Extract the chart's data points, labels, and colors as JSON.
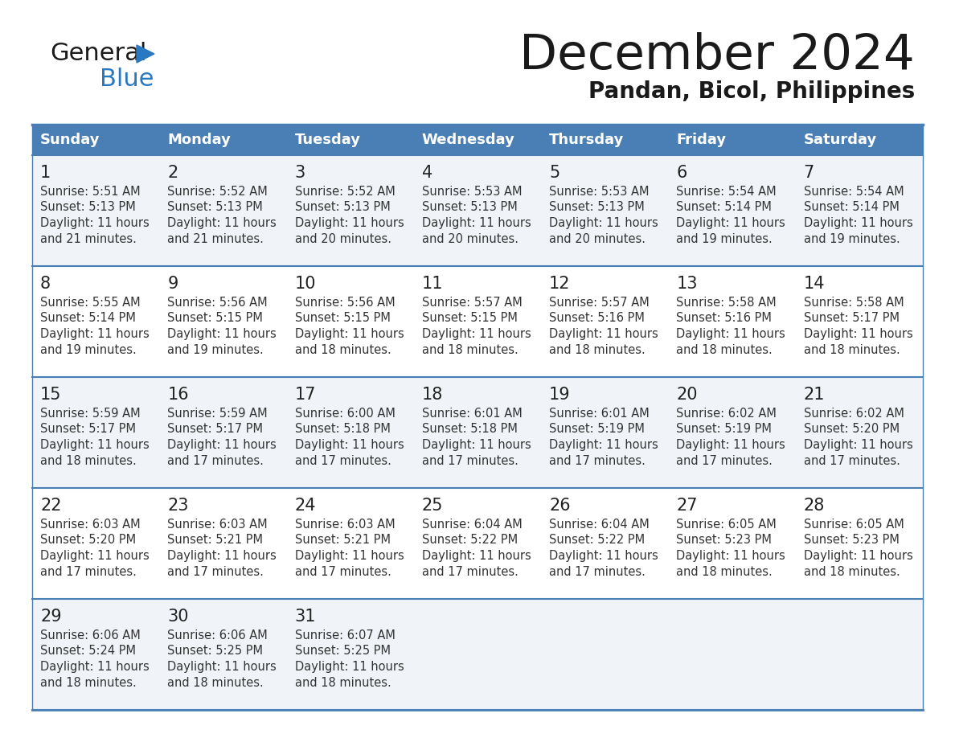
{
  "title": "December 2024",
  "subtitle": "Pandan, Bicol, Philippines",
  "header_color": "#4A7FB5",
  "header_text_color": "#FFFFFF",
  "cell_bg_odd": "#F0F4F8",
  "cell_bg_even": "#FFFFFF",
  "border_color": "#4A7FB5",
  "day_number_color": "#222222",
  "text_color": "#333333",
  "logo_general_color": "#1a1a1a",
  "logo_blue_color": "#2979C2",
  "logo_triangle_color": "#2979C2",
  "days_of_week": [
    "Sunday",
    "Monday",
    "Tuesday",
    "Wednesday",
    "Thursday",
    "Friday",
    "Saturday"
  ],
  "weeks": [
    [
      {
        "day": 1,
        "sunrise": "5:51 AM",
        "sunset": "5:13 PM",
        "dl_mins": "21"
      },
      {
        "day": 2,
        "sunrise": "5:52 AM",
        "sunset": "5:13 PM",
        "dl_mins": "21"
      },
      {
        "day": 3,
        "sunrise": "5:52 AM",
        "sunset": "5:13 PM",
        "dl_mins": "20"
      },
      {
        "day": 4,
        "sunrise": "5:53 AM",
        "sunset": "5:13 PM",
        "dl_mins": "20"
      },
      {
        "day": 5,
        "sunrise": "5:53 AM",
        "sunset": "5:13 PM",
        "dl_mins": "20"
      },
      {
        "day": 6,
        "sunrise": "5:54 AM",
        "sunset": "5:14 PM",
        "dl_mins": "19"
      },
      {
        "day": 7,
        "sunrise": "5:54 AM",
        "sunset": "5:14 PM",
        "dl_mins": "19"
      }
    ],
    [
      {
        "day": 8,
        "sunrise": "5:55 AM",
        "sunset": "5:14 PM",
        "dl_mins": "19"
      },
      {
        "day": 9,
        "sunrise": "5:56 AM",
        "sunset": "5:15 PM",
        "dl_mins": "19"
      },
      {
        "day": 10,
        "sunrise": "5:56 AM",
        "sunset": "5:15 PM",
        "dl_mins": "18"
      },
      {
        "day": 11,
        "sunrise": "5:57 AM",
        "sunset": "5:15 PM",
        "dl_mins": "18"
      },
      {
        "day": 12,
        "sunrise": "5:57 AM",
        "sunset": "5:16 PM",
        "dl_mins": "18"
      },
      {
        "day": 13,
        "sunrise": "5:58 AM",
        "sunset": "5:16 PM",
        "dl_mins": "18"
      },
      {
        "day": 14,
        "sunrise": "5:58 AM",
        "sunset": "5:17 PM",
        "dl_mins": "18"
      }
    ],
    [
      {
        "day": 15,
        "sunrise": "5:59 AM",
        "sunset": "5:17 PM",
        "dl_mins": "18"
      },
      {
        "day": 16,
        "sunrise": "5:59 AM",
        "sunset": "5:17 PM",
        "dl_mins": "17"
      },
      {
        "day": 17,
        "sunrise": "6:00 AM",
        "sunset": "5:18 PM",
        "dl_mins": "17"
      },
      {
        "day": 18,
        "sunrise": "6:01 AM",
        "sunset": "5:18 PM",
        "dl_mins": "17"
      },
      {
        "day": 19,
        "sunrise": "6:01 AM",
        "sunset": "5:19 PM",
        "dl_mins": "17"
      },
      {
        "day": 20,
        "sunrise": "6:02 AM",
        "sunset": "5:19 PM",
        "dl_mins": "17"
      },
      {
        "day": 21,
        "sunrise": "6:02 AM",
        "sunset": "5:20 PM",
        "dl_mins": "17"
      }
    ],
    [
      {
        "day": 22,
        "sunrise": "6:03 AM",
        "sunset": "5:20 PM",
        "dl_mins": "17"
      },
      {
        "day": 23,
        "sunrise": "6:03 AM",
        "sunset": "5:21 PM",
        "dl_mins": "17"
      },
      {
        "day": 24,
        "sunrise": "6:03 AM",
        "sunset": "5:21 PM",
        "dl_mins": "17"
      },
      {
        "day": 25,
        "sunrise": "6:04 AM",
        "sunset": "5:22 PM",
        "dl_mins": "17"
      },
      {
        "day": 26,
        "sunrise": "6:04 AM",
        "sunset": "5:22 PM",
        "dl_mins": "17"
      },
      {
        "day": 27,
        "sunrise": "6:05 AM",
        "sunset": "5:23 PM",
        "dl_mins": "18"
      },
      {
        "day": 28,
        "sunrise": "6:05 AM",
        "sunset": "5:23 PM",
        "dl_mins": "18"
      }
    ],
    [
      {
        "day": 29,
        "sunrise": "6:06 AM",
        "sunset": "5:24 PM",
        "dl_mins": "18"
      },
      {
        "day": 30,
        "sunrise": "6:06 AM",
        "sunset": "5:25 PM",
        "dl_mins": "18"
      },
      {
        "day": 31,
        "sunrise": "6:07 AM",
        "sunset": "5:25 PM",
        "dl_mins": "18"
      },
      null,
      null,
      null,
      null
    ]
  ]
}
